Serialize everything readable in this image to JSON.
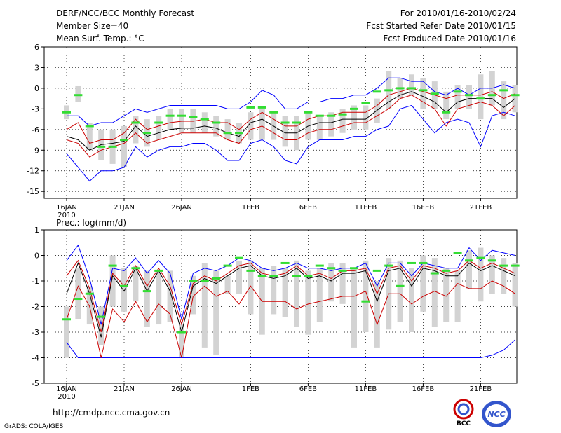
{
  "header": {
    "title": "DERF/NCC/BCC Monthly Forecast",
    "member_size": "Member Size=40",
    "variable": "Mean Surf. Temp.: °C",
    "period": "For 2010/01/16-2010/02/24",
    "refer_date": "Fcst Started Refer Date 2010/01/15",
    "produced_date": "Fcst Produced Date 2010/01/16"
  },
  "footer": {
    "url": "http://cmdp.ncc.cma.gov.cn",
    "grads": "GrADS: COLA/IGES",
    "logo1_text": "BCC",
    "logo2_text": "NCC"
  },
  "colors": {
    "ensemble_mean": "#000000",
    "spread": "#cc0000",
    "extreme": "#0000ff",
    "box": "#d3d3d3",
    "observed": "#33dd33"
  },
  "chart_data": [
    {
      "type": "line",
      "title": "Mean Surf. Temp.: °C",
      "ylim": [
        -16,
        6
      ],
      "yticks": [
        6,
        3,
        0,
        -3,
        -6,
        -9,
        -12,
        -15
      ],
      "x_tick_labels": [
        "16JAN",
        "21JAN",
        "26JAN",
        "1FEB",
        "6FEB",
        "11FEB",
        "16FEB",
        "21FEB"
      ],
      "x_tick_index": [
        0,
        5,
        10,
        16,
        21,
        26,
        31,
        36
      ],
      "x_year_label": "2010",
      "days": 40,
      "series": [
        {
          "name": "max",
          "values": [
            -9.5,
            -11.5,
            -13.5,
            -12,
            -12,
            -11.5,
            -8.5,
            -10,
            -9,
            -8.5,
            -8.5,
            -8,
            -8,
            -9,
            -10.5,
            -10.5,
            -8,
            -7.5,
            -8.5,
            -10.5,
            -11,
            -8.5,
            -7.5,
            -7.5,
            -7.5,
            -7,
            -7,
            -6,
            -5.5,
            -3,
            -2.5,
            -4.5,
            -6.5,
            -5,
            -4.5,
            -5,
            -8.5,
            -4,
            -3.5,
            -4
          ]
        },
        {
          "name": "p20",
          "values": [
            -7.5,
            -8,
            -10,
            -9,
            -8.5,
            -8,
            -6.5,
            -8,
            -7.5,
            -7,
            -6.5,
            -6.5,
            -6.5,
            -6.5,
            -7.5,
            -8,
            -6,
            -5.5,
            -6.5,
            -7.5,
            -7.5,
            -6.5,
            -6,
            -6,
            -5.5,
            -5,
            -5,
            -4,
            -3,
            -1.5,
            -1,
            -2,
            -3,
            -5.5,
            -3,
            -2.5,
            -2,
            -2.5,
            -4,
            -2.5
          ]
        },
        {
          "name": "mean",
          "values": [
            -7,
            -7.5,
            -9,
            -8.2,
            -8,
            -7.7,
            -5.5,
            -7,
            -6.5,
            -6,
            -5.8,
            -5.8,
            -5.5,
            -5.8,
            -6.5,
            -7,
            -5,
            -4.5,
            -5.5,
            -6.5,
            -6.5,
            -5.5,
            -5,
            -5,
            -4.5,
            -4.5,
            -4.5,
            -3.2,
            -2,
            -1,
            -0.5,
            -1.2,
            -2,
            -3.5,
            -2,
            -1.5,
            -1.5,
            -1.5,
            -2.8,
            -1.5
          ]
        },
        {
          "name": "p80",
          "values": [
            -6,
            -5,
            -8,
            -7.5,
            -7.5,
            -6.5,
            -4.5,
            -6,
            -5.5,
            -5,
            -4.8,
            -4.8,
            -4.5,
            -5,
            -5,
            -6,
            -4.5,
            -3.5,
            -4.5,
            -5.5,
            -5.5,
            -4.5,
            -4,
            -4,
            -3.5,
            -3.5,
            -3.5,
            -2.5,
            -1,
            -0.5,
            0,
            -0.5,
            -1,
            -1.5,
            -1,
            -1,
            -1,
            -0.5,
            -1.5,
            -0.8
          ]
        },
        {
          "name": "min",
          "values": [
            -4,
            -4,
            -5.5,
            -5,
            -5,
            -4,
            -3,
            -3.5,
            -3,
            -2.5,
            -2.5,
            -2.5,
            -2.5,
            -2.5,
            -3,
            -3,
            -2,
            -0.3,
            -1,
            -3,
            -3,
            -2,
            -2,
            -1.5,
            -1.5,
            -1,
            -1,
            0,
            1.5,
            1.5,
            1,
            1,
            -0.5,
            -1,
            0,
            -1,
            0,
            0,
            0.5,
            0
          ]
        },
        {
          "name": "box_low",
          "values": [
            -4.5,
            -2,
            -9,
            -10.5,
            -11,
            -11.5,
            -8,
            -8.5,
            -7.5,
            -6,
            -6.5,
            -6.5,
            -6.5,
            -7,
            -7.5,
            -8,
            -7.5,
            -7.5,
            -7.5,
            -8.5,
            -9,
            -7.5,
            -7.5,
            -7,
            -6.5,
            -6,
            -6,
            -5,
            -3,
            -1.5,
            -1,
            -3,
            -3,
            -4.5,
            -3,
            -3,
            -4.5,
            -2.5,
            -4.5,
            -3.5
          ]
        },
        {
          "name": "box_high",
          "values": [
            -2.5,
            0.3,
            -5,
            -6,
            -6,
            -5.5,
            -4,
            -4.5,
            -4,
            -3,
            -3,
            -3,
            -3.5,
            -4,
            -4.5,
            -5,
            -3.5,
            -3,
            -3.5,
            -4,
            -4,
            -3.5,
            -4,
            -3.5,
            -3,
            -2.5,
            -2.5,
            -1.5,
            2.5,
            1.5,
            2,
            1.5,
            1,
            -0.5,
            0.5,
            0.5,
            2,
            2.5,
            1,
            0.5
          ]
        },
        {
          "name": "observed",
          "values": [
            -3.5,
            -1,
            -5.5,
            -8.5,
            -8.5,
            -7.5,
            -5,
            -6.5,
            -5,
            -4,
            -4,
            -4.2,
            -4.5,
            -5,
            -6.5,
            -6.5,
            -2.8,
            -2.8,
            -3.5,
            -5,
            -5,
            -3.5,
            -4,
            -4,
            -3.8,
            -3,
            -2.2,
            -0.5,
            -0.3,
            0,
            0,
            -0.3,
            -0.8,
            -3.5,
            -0.5,
            -1,
            -1.5,
            -1,
            -0.3,
            -1
          ]
        }
      ]
    },
    {
      "type": "line",
      "title": "Prec.: log(mm/d)",
      "ylim": [
        -5,
        1
      ],
      "yticks": [
        1,
        0,
        -1,
        -2,
        -3,
        -4,
        -5
      ],
      "x_tick_labels": [
        "16JAN",
        "21JAN",
        "26JAN",
        "1FEB",
        "6FEB",
        "11FEB",
        "16FEB",
        "21FEB"
      ],
      "x_tick_index": [
        0,
        5,
        10,
        16,
        21,
        26,
        31,
        36
      ],
      "x_year_label": "2010",
      "days": 40,
      "series": [
        {
          "name": "max",
          "values": [
            -3.4,
            -4,
            -4,
            -4,
            -4,
            -4,
            -4,
            -4,
            -4,
            -4,
            -4,
            -4,
            -4,
            -4,
            -4,
            -4,
            -4,
            -4,
            -4,
            -4,
            -4,
            -4,
            -4,
            -4,
            -4,
            -4,
            -4,
            -4,
            -4,
            -4,
            -4,
            -4,
            -4,
            -4,
            -4,
            -4,
            -4,
            -3.9,
            -3.7,
            -3.3
          ]
        },
        {
          "name": "p20",
          "values": [
            -2.5,
            -1.2,
            -2,
            -4,
            -2.1,
            -2.6,
            -1.8,
            -2.6,
            -1.9,
            -2.3,
            -4,
            -1.6,
            -1.2,
            -1.6,
            -1.4,
            -1.9,
            -1.2,
            -1.8,
            -1.8,
            -1.8,
            -2.1,
            -1.9,
            -1.8,
            -1.7,
            -1.6,
            -1.6,
            -1.4,
            -2.7,
            -1.5,
            -1.5,
            -1.9,
            -1.6,
            -1.4,
            -1.6,
            -1.1,
            -1.3,
            -1.3,
            -1,
            -1.2,
            -1.5
          ]
        },
        {
          "name": "mean",
          "values": [
            -1.5,
            -0.3,
            -1.5,
            -3.2,
            -0.8,
            -1.4,
            -0.5,
            -1.4,
            -0.6,
            -1.4,
            -3,
            -1.2,
            -0.9,
            -1.1,
            -0.8,
            -0.5,
            -0.4,
            -0.8,
            -0.9,
            -0.8,
            -0.5,
            -0.9,
            -0.8,
            -1,
            -0.7,
            -0.7,
            -0.6,
            -1.8,
            -0.6,
            -0.5,
            -1.2,
            -0.5,
            -0.6,
            -0.8,
            -0.8,
            -0.3,
            -0.6,
            -0.4,
            -0.6,
            -0.8
          ]
        },
        {
          "name": "p80",
          "values": [
            -0.8,
            -0.2,
            -1.3,
            -3,
            -0.7,
            -1.2,
            -0.4,
            -1.2,
            -0.5,
            -1.2,
            -2.7,
            -1.1,
            -0.8,
            -1,
            -0.7,
            -0.4,
            -0.3,
            -0.7,
            -0.8,
            -0.7,
            -0.4,
            -0.8,
            -0.7,
            -0.9,
            -0.6,
            -0.6,
            -0.5,
            -1.5,
            -0.5,
            -0.4,
            -1,
            -0.4,
            -0.5,
            -0.7,
            -0.6,
            -0.2,
            -0.5,
            -0.3,
            -0.5,
            -0.7
          ]
        },
        {
          "name": "min",
          "values": [
            -0.2,
            0.4,
            -0.9,
            -2.7,
            -0.5,
            -0.6,
            -0.1,
            -0.7,
            -0.2,
            -0.7,
            -2.5,
            -0.7,
            -0.5,
            -0.6,
            -0.4,
            -0.1,
            -0.2,
            -0.5,
            -0.6,
            -0.5,
            -0.3,
            -0.5,
            -0.5,
            -0.6,
            -0.5,
            -0.5,
            -0.3,
            -1.2,
            -0.3,
            -0.3,
            -0.8,
            -0.3,
            -0.4,
            -0.5,
            -0.5,
            0.3,
            -0.2,
            0.2,
            0.1,
            0
          ]
        },
        {
          "name": "box_low",
          "values": [
            -4,
            -2.5,
            -2.7,
            -3.5,
            -2,
            -2.2,
            -1.8,
            -2.8,
            -2.7,
            -2.6,
            -4,
            -2.3,
            -3.6,
            -3.9,
            -1.5,
            -1.5,
            -2.3,
            -3.1,
            -2.3,
            -2.4,
            -2.8,
            -3.1,
            -2.6,
            -1.8,
            -1.9,
            -3.6,
            -3,
            -3.6,
            -2.9,
            -2.6,
            -3,
            -2.2,
            -2.8,
            -2.6,
            -2.6,
            -1.3,
            -1.8,
            -1.5,
            -1.5,
            -2
          ]
        },
        {
          "name": "box_high",
          "values": [
            -2,
            -0.5,
            -1.2,
            -2,
            0,
            -0.5,
            -0.4,
            -0.6,
            -0.6,
            -0.6,
            -2.7,
            -0.8,
            -0.3,
            -0.6,
            -0.8,
            -0.2,
            -0.2,
            -0.5,
            -0.4,
            -0.5,
            -0.2,
            -0.6,
            -0.5,
            -0.3,
            -0.3,
            -0.5,
            -0.2,
            -1,
            -0.1,
            -0.2,
            -0.5,
            0,
            -0.1,
            -0.5,
            -0.6,
            0.2,
            0.3,
            0,
            -0.1,
            -0.3
          ]
        },
        {
          "name": "observed",
          "values": [
            -2.5,
            -1.7,
            -1.5,
            -2.4,
            -0.4,
            -1.2,
            -0.5,
            -1.4,
            -0.6,
            null,
            -3,
            -1,
            -1,
            -0.9,
            -0.4,
            -0.1,
            -0.6,
            -0.8,
            -0.8,
            -0.3,
            -0.8,
            -0.8,
            -0.4,
            -0.5,
            -0.6,
            -0.5,
            -1.8,
            -0.6,
            -0.4,
            -1.2,
            -0.3,
            -0.3,
            -0.7,
            -0.6,
            0.1,
            -0.2,
            -0.1,
            -0.2,
            -0.4,
            -0.4
          ]
        }
      ]
    }
  ]
}
